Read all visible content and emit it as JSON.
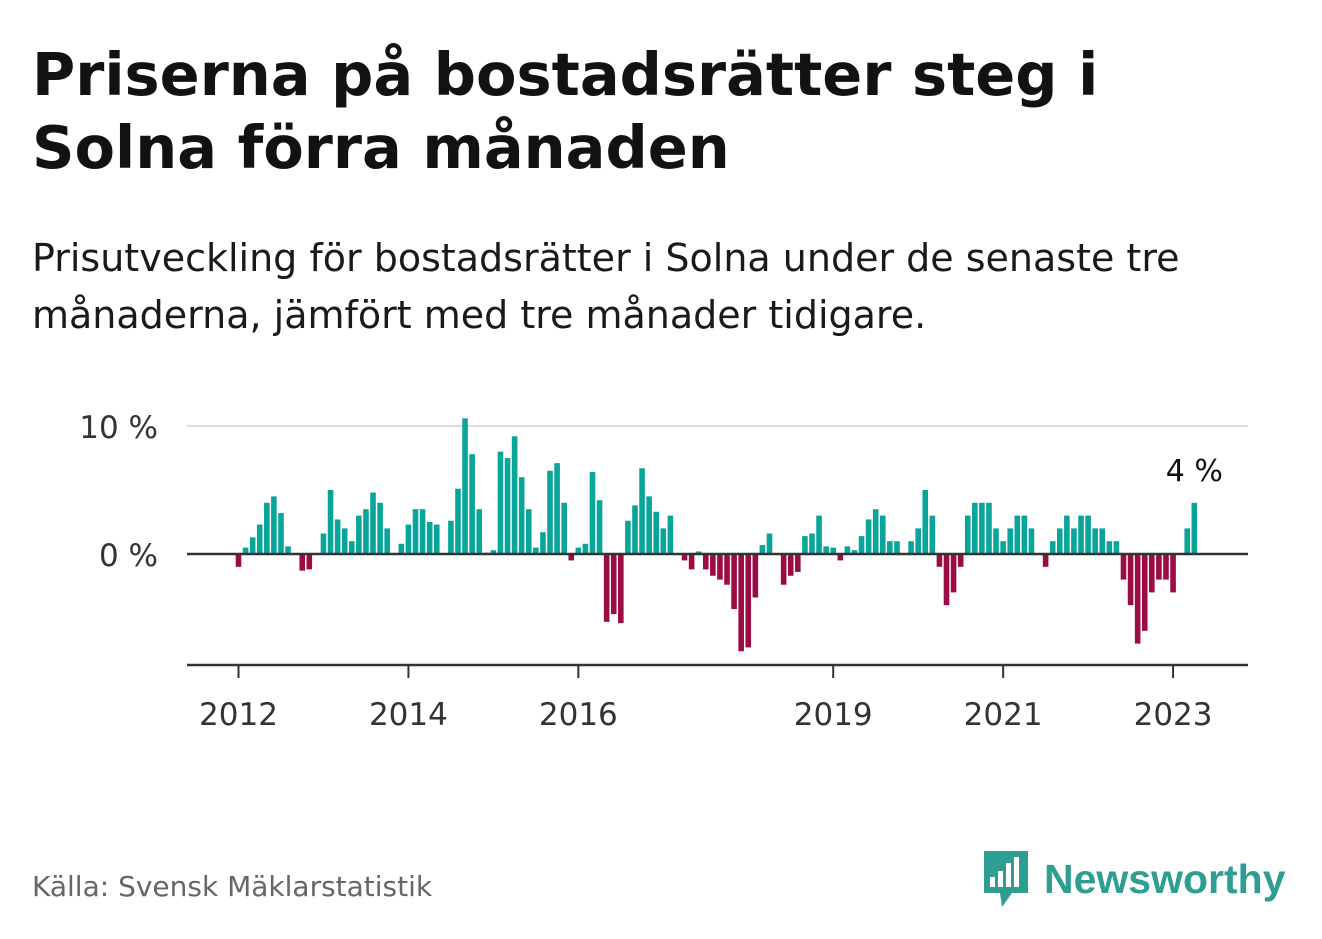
{
  "title": "Priserna på bostadsrätter steg i Solna förra månaden",
  "subtitle": "Prisutveckling för bostadsrätter i Solna under de senaste tre månaderna, jämfört med tre månader tidigare.",
  "source": "Källa: Svensk Mäklarstatistik",
  "brand": "Newsworthy",
  "colors": {
    "positive": "#0aa59a",
    "negative": "#9b0b44",
    "axis": "#333333",
    "grid": "#dddddd",
    "brand": "#2e9e93"
  },
  "chart_data": {
    "type": "bar",
    "title": "",
    "xlabel": "",
    "ylabel": "",
    "ylim": [
      -8.5,
      10
    ],
    "y_ticks": [
      {
        "value": 10,
        "label": "10 %"
      },
      {
        "value": 0,
        "label": "0 %"
      }
    ],
    "x_ticks": [
      {
        "month_index": 0,
        "label": "2012"
      },
      {
        "month_index": 24,
        "label": "2014"
      },
      {
        "month_index": 48,
        "label": "2016"
      },
      {
        "month_index": 84,
        "label": "2019"
      },
      {
        "month_index": 108,
        "label": "2021"
      },
      {
        "month_index": 132,
        "label": "2023"
      }
    ],
    "start": "2012-01",
    "unit": "%",
    "last_label": "4 %",
    "values": [
      -1,
      0.5,
      1.3,
      2.3,
      4,
      4.5,
      3.2,
      0.6,
      0,
      -1.3,
      -1.2,
      0,
      1.6,
      5,
      2.7,
      2,
      1,
      3,
      3.5,
      4.8,
      4,
      2,
      0,
      0.8,
      2.3,
      3.5,
      3.5,
      2.5,
      2.3,
      0,
      2.6,
      5.1,
      10.6,
      7.8,
      3.5,
      0.1,
      0.3,
      8,
      7.5,
      9.2,
      6,
      3.5,
      0.5,
      1.7,
      6.5,
      7.1,
      4,
      -0.5,
      0.5,
      0.8,
      6.4,
      4.2,
      -5.3,
      -4.7,
      -5.4,
      2.6,
      3.8,
      6.7,
      4.5,
      3.3,
      2,
      3,
      0,
      -0.5,
      -1.2,
      0.2,
      -1.2,
      -1.7,
      -2,
      -2.4,
      -4.3,
      -7.6,
      -7.3,
      -3.4,
      0.7,
      1.6,
      0,
      -2.4,
      -1.7,
      -1.4,
      1.4,
      1.6,
      3,
      0.6,
      0.5,
      -0.5,
      0.6,
      0.3,
      1.4,
      2.7,
      3.5,
      3,
      1,
      1,
      0,
      1,
      2,
      5,
      3,
      -1,
      -4,
      -3,
      -1,
      3,
      4,
      4,
      4,
      2,
      1,
      2,
      3,
      3,
      2,
      0,
      -1,
      1,
      2,
      3,
      2,
      3,
      3,
      2,
      2,
      1,
      1,
      -2,
      -4,
      -7,
      -6,
      -3,
      -2,
      -2,
      -3,
      0,
      2,
      4
    ]
  }
}
